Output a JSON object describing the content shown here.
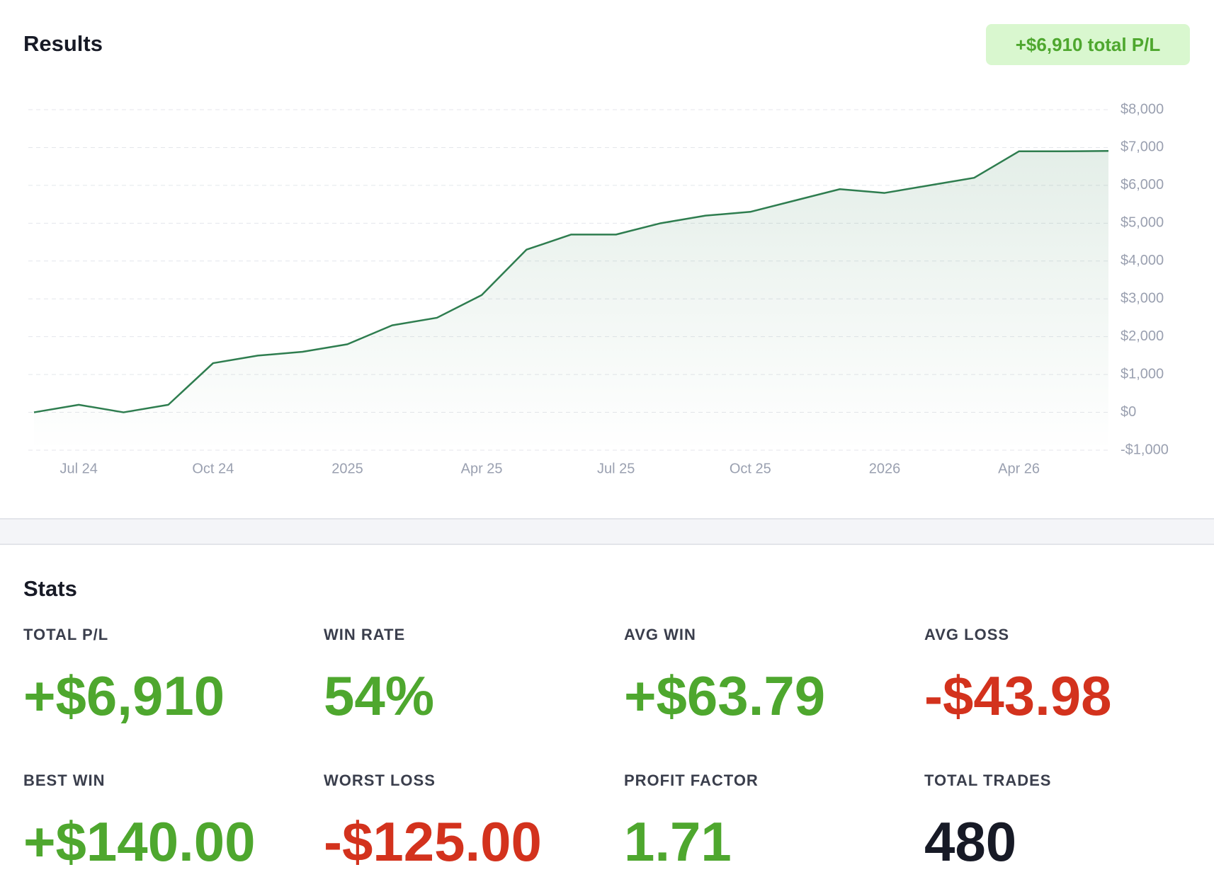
{
  "header": {
    "title": "Results",
    "badge": "+$6,910 total P/L"
  },
  "chart_data": {
    "type": "line",
    "color": "#2e7d4f",
    "grid": true,
    "x": [
      "2024-06",
      "2024-07",
      "2024-08",
      "2024-09",
      "2024-10",
      "2024-11",
      "2024-12",
      "2025-01",
      "2025-02",
      "2025-03",
      "2025-04",
      "2025-05",
      "2025-06",
      "2025-07",
      "2025-08",
      "2025-09",
      "2025-10",
      "2025-11",
      "2025-12",
      "2026-01",
      "2026-02",
      "2026-03",
      "2026-04",
      "2026-05",
      "2026-06"
    ],
    "values": [
      0,
      200,
      0,
      200,
      1300,
      1500,
      1600,
      1800,
      2300,
      2500,
      3100,
      4300,
      4700,
      4700,
      5000,
      5200,
      5300,
      5600,
      5900,
      5800,
      6000,
      6200,
      6900,
      6900,
      6910
    ],
    "xlim": [
      "2024-06",
      "2026-06"
    ],
    "xticks": [
      {
        "value": "2024-07",
        "label": "Jul 24"
      },
      {
        "value": "2024-10",
        "label": "Oct 24"
      },
      {
        "value": "2025-01",
        "label": "2025"
      },
      {
        "value": "2025-04",
        "label": "Apr 25"
      },
      {
        "value": "2025-07",
        "label": "Jul 25"
      },
      {
        "value": "2025-10",
        "label": "Oct 25"
      },
      {
        "value": "2026-01",
        "label": "2026"
      },
      {
        "value": "2026-04",
        "label": "Apr 26"
      }
    ],
    "ylim": [
      -1000,
      8000
    ],
    "yticks": [
      {
        "value": -1000,
        "label": "-$1,000"
      },
      {
        "value": 0,
        "label": "$0"
      },
      {
        "value": 1000,
        "label": "$1,000"
      },
      {
        "value": 2000,
        "label": "$2,000"
      },
      {
        "value": 3000,
        "label": "$3,000"
      },
      {
        "value": 4000,
        "label": "$4,000"
      },
      {
        "value": 5000,
        "label": "$5,000"
      },
      {
        "value": 6000,
        "label": "$6,000"
      },
      {
        "value": 7000,
        "label": "$7,000"
      },
      {
        "value": 8000,
        "label": "$8,000"
      }
    ]
  },
  "stats": {
    "title": "Stats",
    "items": [
      {
        "label": "TOTAL P/L",
        "value": "+$6,910",
        "color": "#4ea72e"
      },
      {
        "label": "WIN RATE",
        "value": "54%",
        "color": "#4ea72e"
      },
      {
        "label": "AVG WIN",
        "value": "+$63.79",
        "color": "#4ea72e"
      },
      {
        "label": "AVG LOSS",
        "value": "-$43.98",
        "color": "#d3321d"
      },
      {
        "label": "BEST WIN",
        "value": "+$140.00",
        "color": "#4ea72e"
      },
      {
        "label": "WORST LOSS",
        "value": "-$125.00",
        "color": "#d3321d"
      },
      {
        "label": "PROFIT FACTOR",
        "value": "1.71",
        "color": "#4ea72e"
      },
      {
        "label": "TOTAL TRADES",
        "value": "480",
        "color": "#171a26"
      }
    ]
  }
}
